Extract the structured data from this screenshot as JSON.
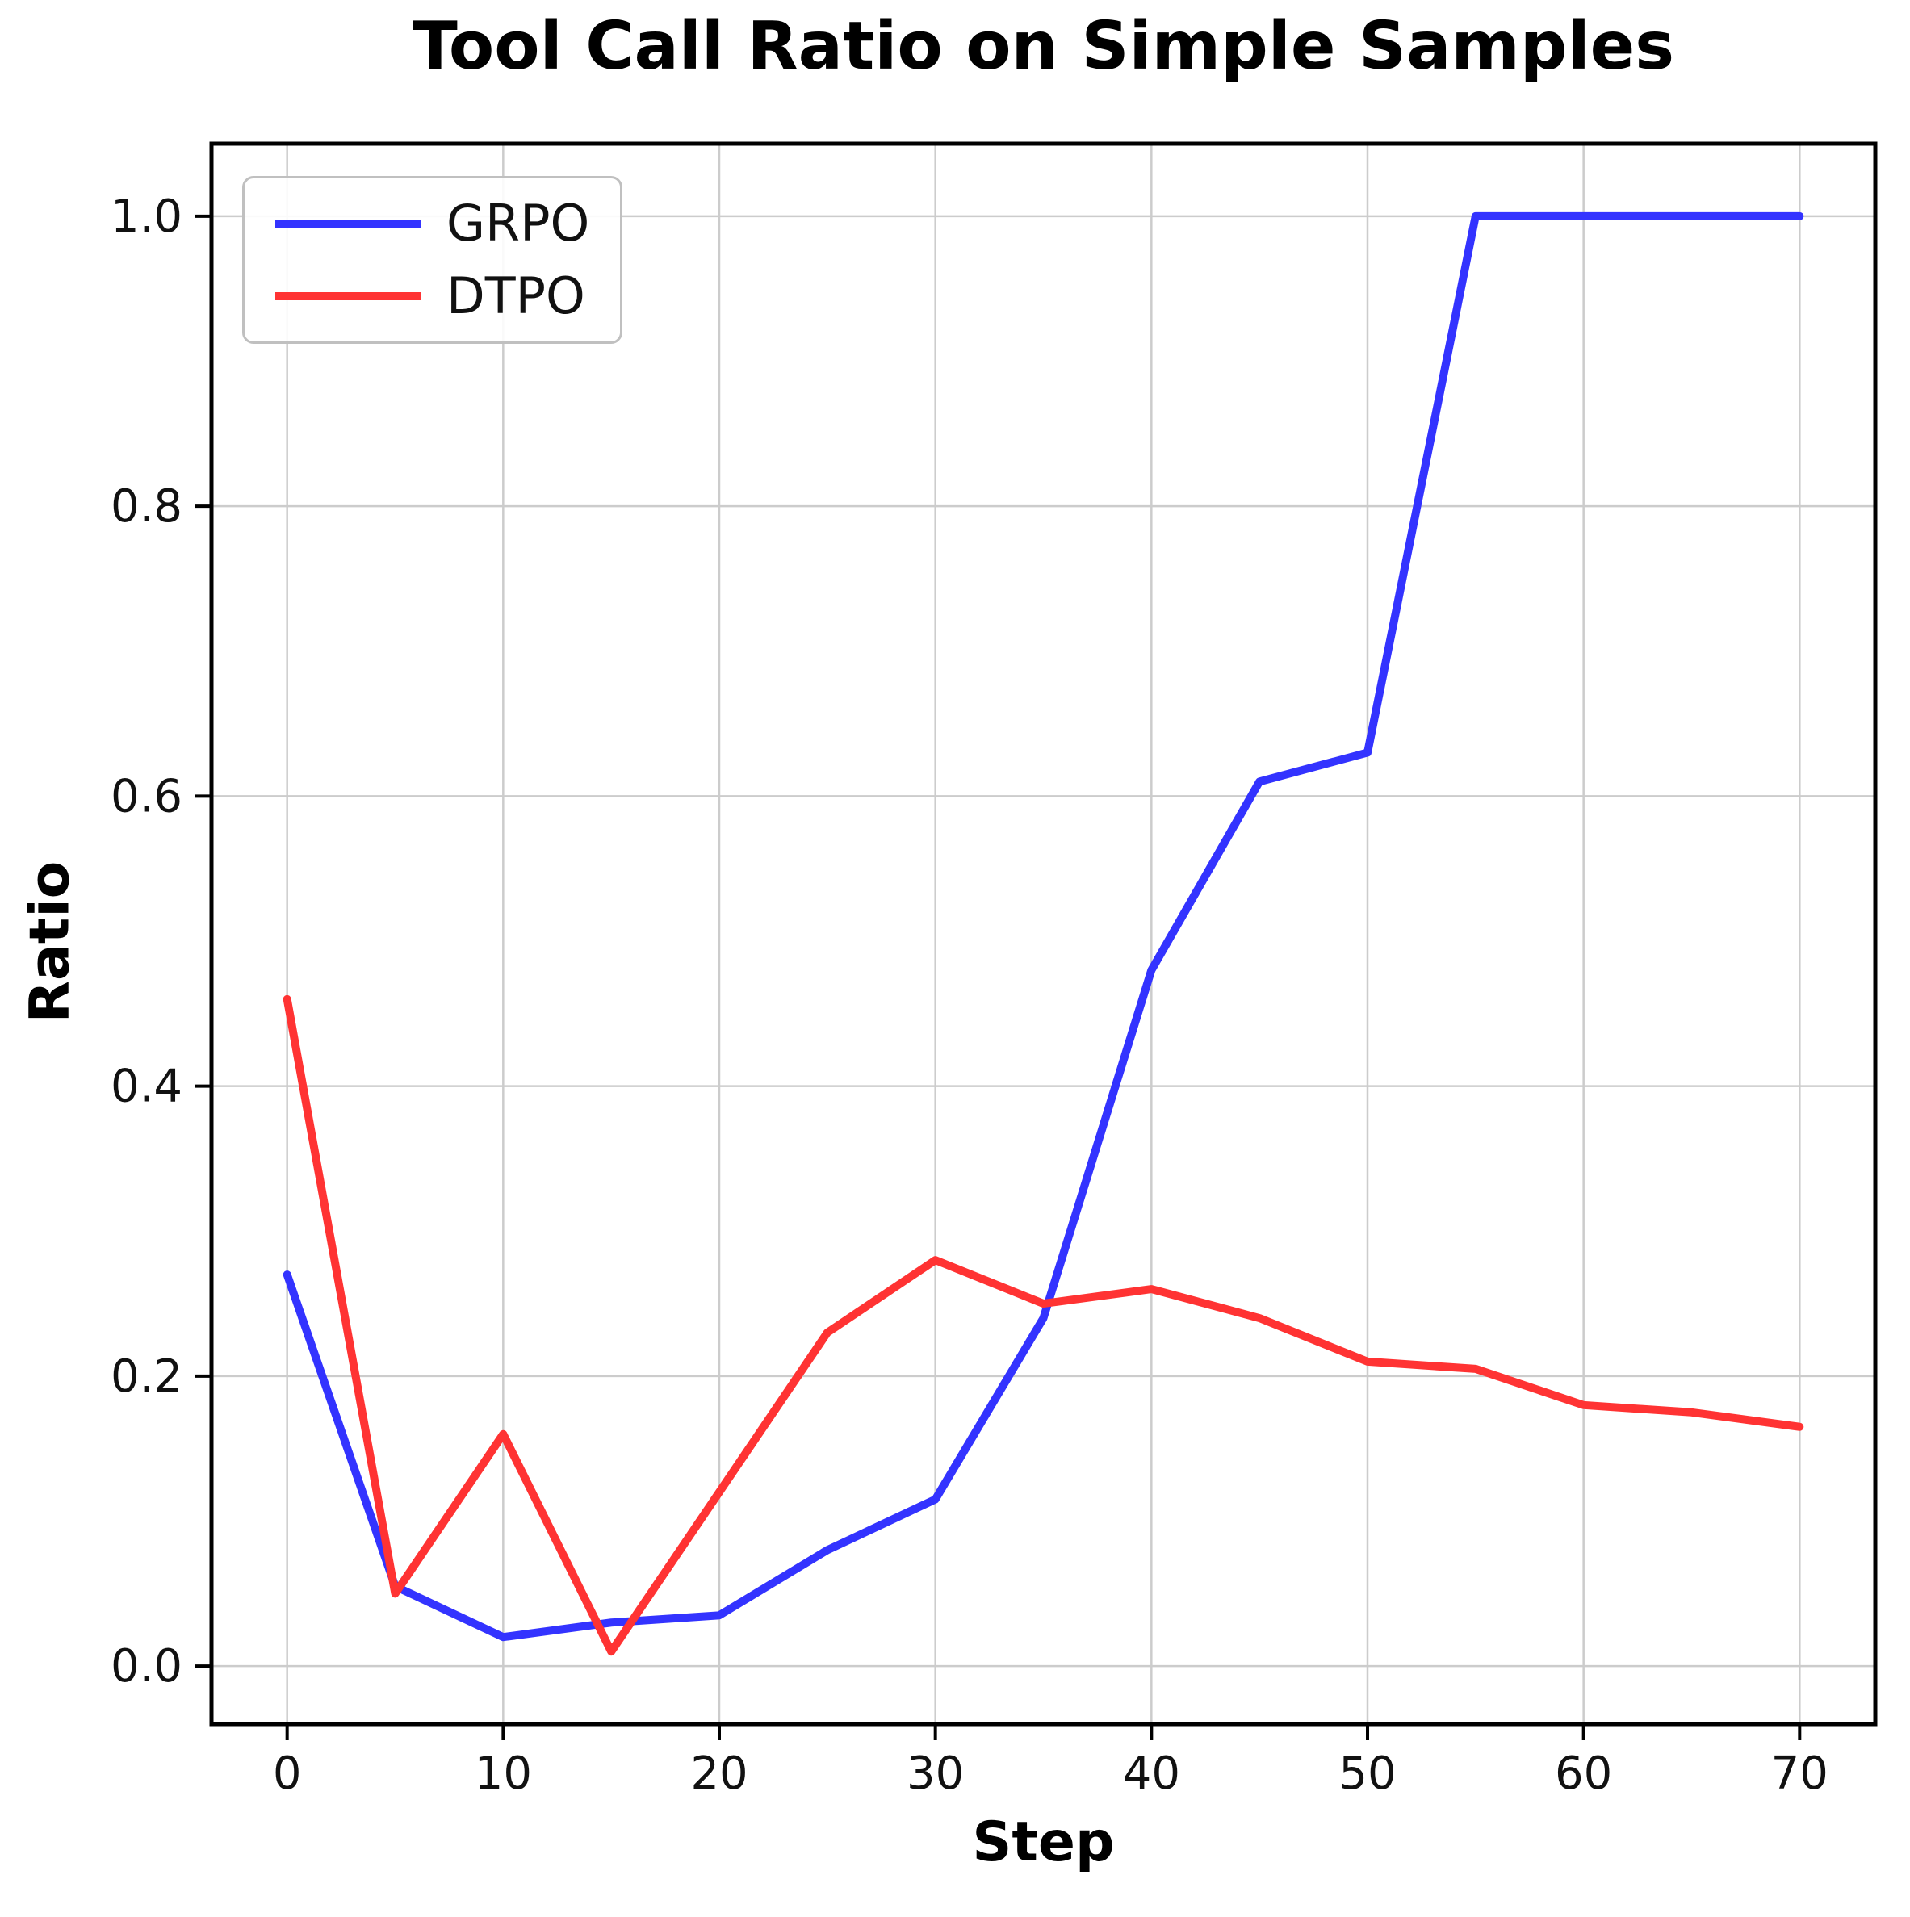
{
  "chart_data": {
    "type": "line",
    "title": "Tool Call Ratio on Simple Samples",
    "xlabel": "Step",
    "ylabel": "Ratio",
    "x": [
      0,
      5,
      10,
      15,
      20,
      25,
      30,
      35,
      40,
      45,
      50,
      55,
      60,
      65,
      70
    ],
    "series": [
      {
        "name": "GRPO",
        "color": "#3333ff",
        "values": [
          0.27,
          0.055,
          0.02,
          0.03,
          0.035,
          0.08,
          0.115,
          0.24,
          0.48,
          0.61,
          0.63,
          1.0,
          1.0,
          1.0,
          1.0
        ]
      },
      {
        "name": "DTPO",
        "color": "#ff3333",
        "values": [
          0.46,
          0.05,
          0.16,
          0.01,
          0.12,
          0.23,
          0.28,
          0.25,
          0.26,
          0.24,
          0.21,
          0.205,
          0.18,
          0.175,
          0.165
        ]
      }
    ],
    "xticks": [
      0,
      10,
      20,
      30,
      40,
      50,
      60,
      70
    ],
    "ytick_values": [
      0.0,
      0.2,
      0.4,
      0.6,
      0.8,
      1.0
    ],
    "ytick_labels": [
      "0.0",
      "0.2",
      "0.4",
      "0.6",
      "0.8",
      "1.0"
    ],
    "xlim": [
      -3.5,
      73.5
    ],
    "ylim": [
      -0.04,
      1.05
    ],
    "grid": true,
    "legend_position": "upper left",
    "line_width": 10
  }
}
